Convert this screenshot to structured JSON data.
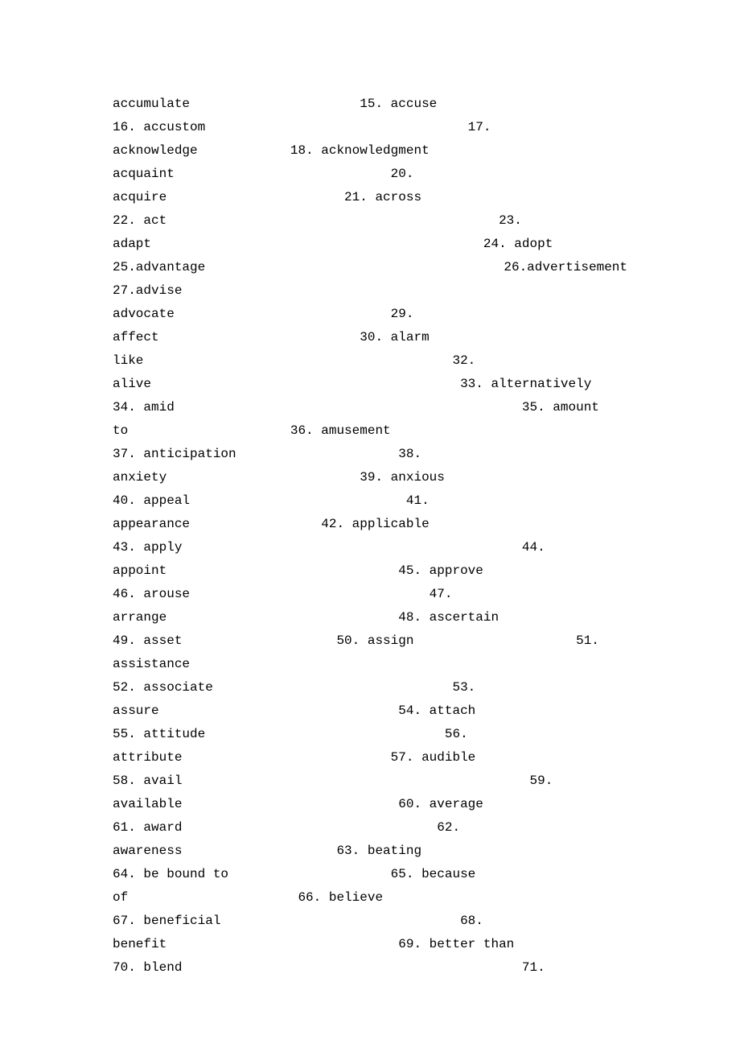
{
  "text": "accumulate                      15. accuse\n16. accustom                                  17.\nacknowledge            18. acknowledgment\nacquaint                            20.\nacquire                       21. across\n22. act                                           23.\nadapt                                           24. adopt\n25.advantage                    26.advertisement           27.advise\nadvocate                            29.\naffect                          30. alarm\nlike                                        32.\nalive                                        33. alternatively\n34. amid                                             35. amount\nto                     36. amusement\n37. anticipation                     38.\nanxiety                         39. anxious\n40. appeal                            41.\nappearance                 42. applicable\n43. apply                                            44.\nappoint                              45. approve\n46. arouse                               47.\narrange                              48. ascertain\n49. asset                    50. assign                     51.\nassistance\n52. associate                               53.\nassure                               54. attach\n55. attitude                               56.\nattribute                           57. audible\n58. avail                                             59.\navailable                            60. average\n61. award                                 62.\nawareness                    63. beating\n64. be bound to                     65. because\nof                      66. believe\n67. beneficial                               68.\nbenefit                              69. better than\n70. blend                                            71."
}
